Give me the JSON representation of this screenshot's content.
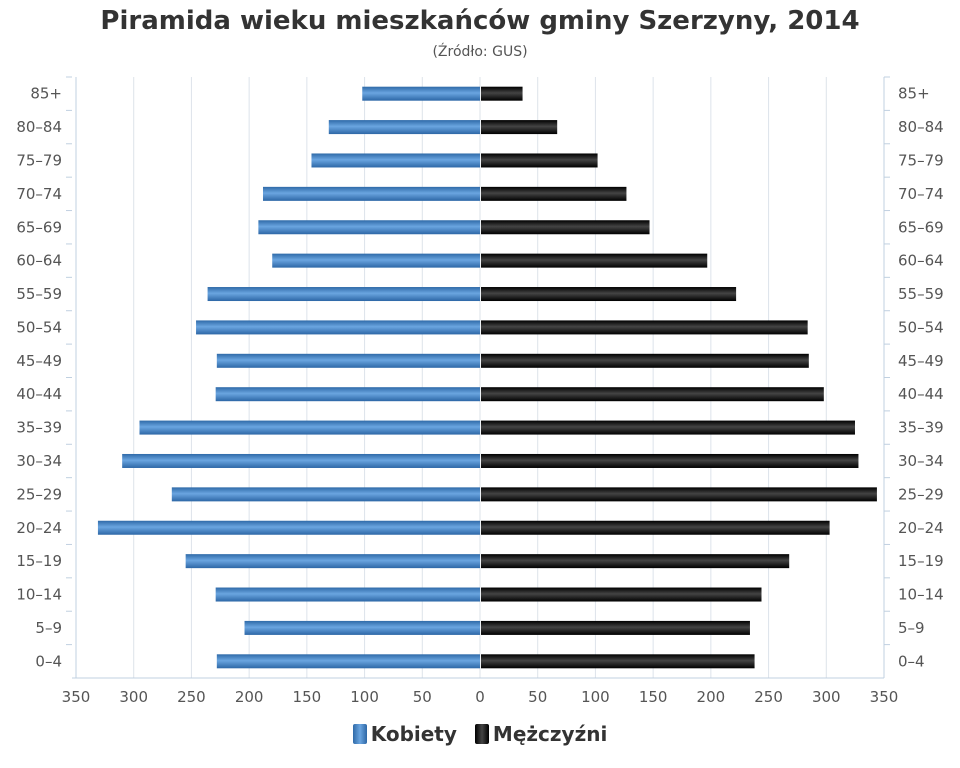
{
  "chart_data": {
    "type": "bar",
    "orientation": "horizontal-pyramid",
    "title": "Piramida wieku mieszkańców gminy Szerzyny, 2014",
    "subtitle": "(Źródło: GUS)",
    "categories": [
      "85+",
      "80–84",
      "75–79",
      "70–74",
      "65–69",
      "60–64",
      "55–59",
      "50–54",
      "45–49",
      "40–44",
      "35–39",
      "30–34",
      "25–29",
      "20–24",
      "15–19",
      "10–14",
      "5–9",
      "0–4"
    ],
    "series": [
      {
        "name": "Kobiety",
        "color": "#3f7fc4",
        "side": "left",
        "values": [
          102,
          131,
          146,
          188,
          192,
          180,
          236,
          246,
          228,
          229,
          295,
          310,
          267,
          331,
          255,
          229,
          204,
          228
        ]
      },
      {
        "name": "Mężczyźni",
        "color": "#111111",
        "side": "right",
        "values": [
          36,
          66,
          101,
          126,
          146,
          196,
          221,
          283,
          284,
          297,
          324,
          327,
          343,
          302,
          267,
          243,
          233,
          237
        ]
      }
    ],
    "xlim": [
      -350,
      350
    ],
    "x_ticks": [
      "350",
      "300",
      "250",
      "200",
      "150",
      "100",
      "50",
      "0",
      "50",
      "100",
      "150",
      "200",
      "250",
      "300",
      "350"
    ],
    "grid": true,
    "legend_position": "bottom"
  }
}
